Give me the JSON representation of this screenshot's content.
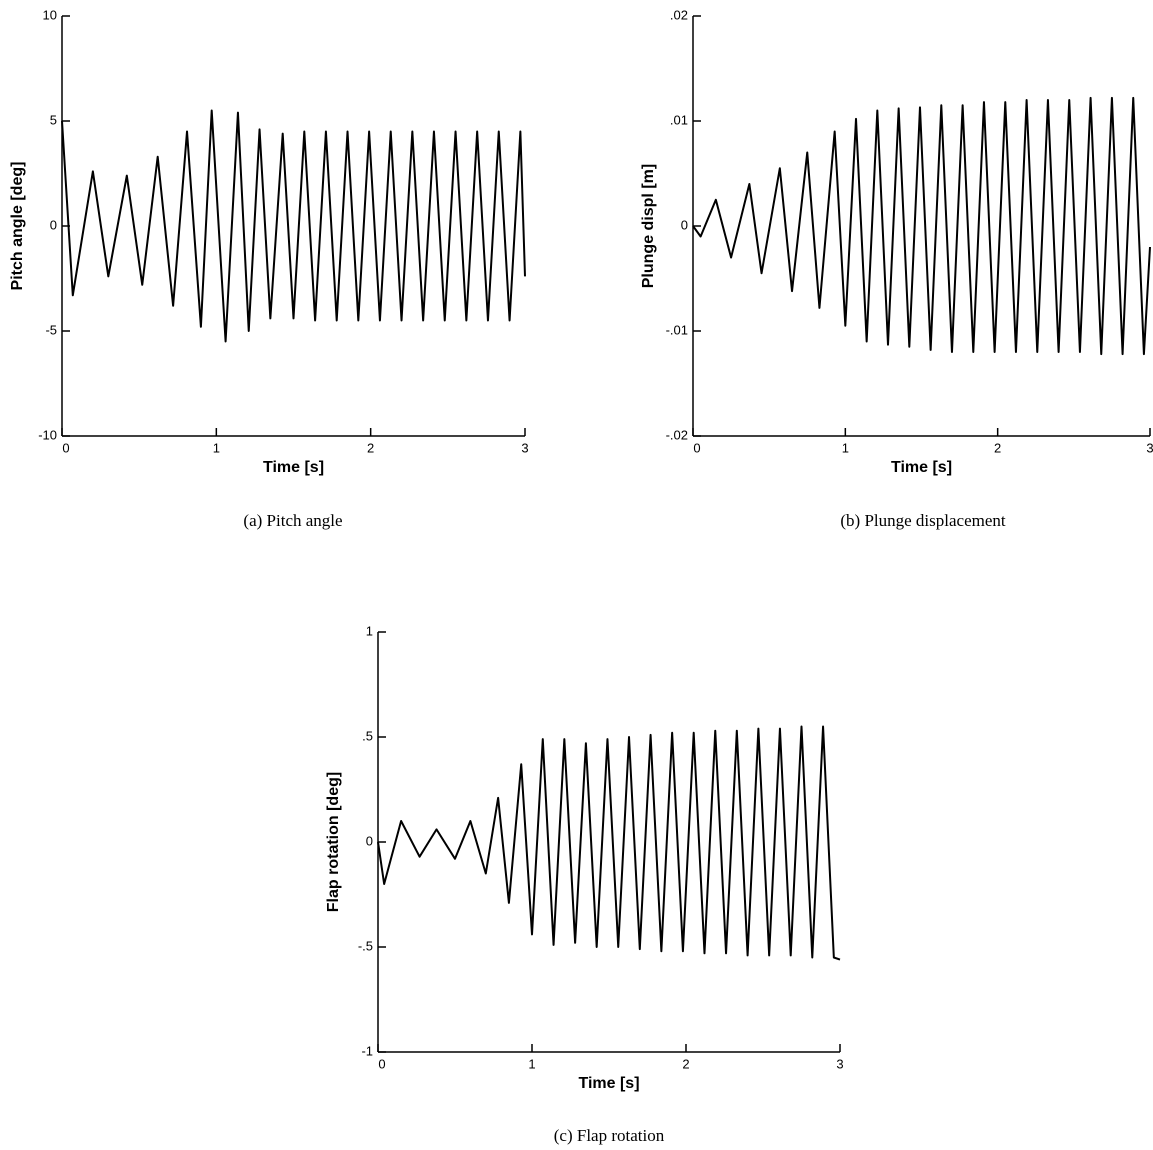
{
  "chart_data": [
    {
      "type": "line",
      "caption": "(a) Pitch angle",
      "x_label": "Time [s]",
      "y_label": "Pitch angle [deg]",
      "color": "#000000",
      "x": [
        0,
        0.07,
        0.2,
        0.3,
        0.42,
        0.52,
        0.62,
        0.72,
        0.81,
        0.9,
        0.97,
        1.06,
        1.14,
        1.21,
        1.28,
        1.35,
        1.43,
        1.5,
        1.57,
        1.64,
        1.71,
        1.78,
        1.85,
        1.92,
        1.99,
        2.06,
        2.13,
        2.2,
        2.27,
        2.34,
        2.41,
        2.48,
        2.55,
        2.62,
        2.69,
        2.76,
        2.83,
        2.9,
        2.97,
        3.0
      ],
      "values": [
        5,
        -3.3,
        2.6,
        -2.4,
        2.4,
        -2.8,
        3.3,
        -3.8,
        4.5,
        -4.8,
        5.5,
        -5.5,
        5.4,
        -5.0,
        4.6,
        -4.4,
        4.4,
        -4.4,
        4.5,
        -4.5,
        4.5,
        -4.5,
        4.5,
        -4.5,
        4.5,
        -4.5,
        4.5,
        -4.5,
        4.5,
        -4.5,
        4.5,
        -4.5,
        4.5,
        -4.5,
        4.5,
        -4.5,
        4.5,
        -4.5,
        4.5,
        -2.4
      ],
      "xlim": [
        0,
        3
      ],
      "xticks": [
        0,
        1,
        2,
        3
      ],
      "ylim": [
        -10,
        10
      ],
      "yticks": [
        -10,
        -5,
        0,
        5,
        10
      ]
    },
    {
      "type": "line",
      "caption": "(b) Plunge displacement",
      "x_label": "Time [s]",
      "y_label": "Plunge displ [m]",
      "color": "#000000",
      "x": [
        0,
        0.05,
        0.15,
        0.25,
        0.37,
        0.45,
        0.57,
        0.65,
        0.75,
        0.83,
        0.93,
        1.0,
        1.07,
        1.14,
        1.21,
        1.28,
        1.35,
        1.42,
        1.49,
        1.56,
        1.63,
        1.7,
        1.77,
        1.84,
        1.91,
        1.98,
        2.05,
        2.12,
        2.19,
        2.26,
        2.33,
        2.4,
        2.47,
        2.54,
        2.61,
        2.68,
        2.75,
        2.82,
        2.89,
        2.96,
        3.0
      ],
      "values": [
        0,
        -0.001,
        0.0025,
        -0.003,
        0.004,
        -0.0045,
        0.0055,
        -0.0062,
        0.007,
        -0.0078,
        0.009,
        -0.0095,
        0.0102,
        -0.011,
        0.011,
        -0.0113,
        0.0112,
        -0.0115,
        0.0113,
        -0.0118,
        0.0115,
        -0.012,
        0.0115,
        -0.012,
        0.0118,
        -0.012,
        0.0118,
        -0.012,
        0.012,
        -0.012,
        0.012,
        -0.012,
        0.012,
        -0.012,
        0.0122,
        -0.0122,
        0.0122,
        -0.0122,
        0.0122,
        -0.0122,
        -0.002
      ],
      "xlim": [
        0,
        3
      ],
      "xticks": [
        0,
        1,
        2,
        3
      ],
      "ylim": [
        -0.02,
        0.02
      ],
      "yticks": [
        {
          "value": -0.02,
          "label": "-.02"
        },
        {
          "value": -0.01,
          "label": "-.01"
        },
        0,
        {
          "value": 0.01,
          "label": ".01"
        },
        {
          "value": 0.02,
          "label": ".02"
        }
      ]
    },
    {
      "type": "line",
      "caption": "(c) Flap rotation",
      "x_label": "Time [s]",
      "y_label": "Flap rotation [deg]",
      "color": "#000000",
      "x": [
        0,
        0.04,
        0.15,
        0.27,
        0.38,
        0.5,
        0.6,
        0.7,
        0.78,
        0.85,
        0.93,
        1.0,
        1.07,
        1.14,
        1.21,
        1.28,
        1.35,
        1.42,
        1.49,
        1.56,
        1.63,
        1.7,
        1.77,
        1.84,
        1.91,
        1.98,
        2.05,
        2.12,
        2.19,
        2.26,
        2.33,
        2.4,
        2.47,
        2.54,
        2.61,
        2.68,
        2.75,
        2.82,
        2.89,
        2.96,
        3.0
      ],
      "values": [
        0,
        -0.2,
        0.1,
        -0.07,
        0.06,
        -0.08,
        0.1,
        -0.15,
        0.21,
        -0.29,
        0.37,
        -0.44,
        0.49,
        -0.49,
        0.49,
        -0.48,
        0.47,
        -0.5,
        0.49,
        -0.5,
        0.5,
        -0.51,
        0.51,
        -0.52,
        0.52,
        -0.52,
        0.52,
        -0.53,
        0.53,
        -0.53,
        0.53,
        -0.54,
        0.54,
        -0.54,
        0.54,
        -0.54,
        0.55,
        -0.55,
        0.55,
        -0.55,
        -0.56
      ],
      "xlim": [
        0,
        3
      ],
      "xticks": [
        0,
        1,
        2,
        3
      ],
      "ylim": [
        -1,
        1
      ],
      "yticks": [
        -1,
        {
          "value": -0.5,
          "label": "-.5"
        },
        0,
        {
          "value": 0.5,
          "label": ".5"
        },
        1
      ]
    }
  ]
}
